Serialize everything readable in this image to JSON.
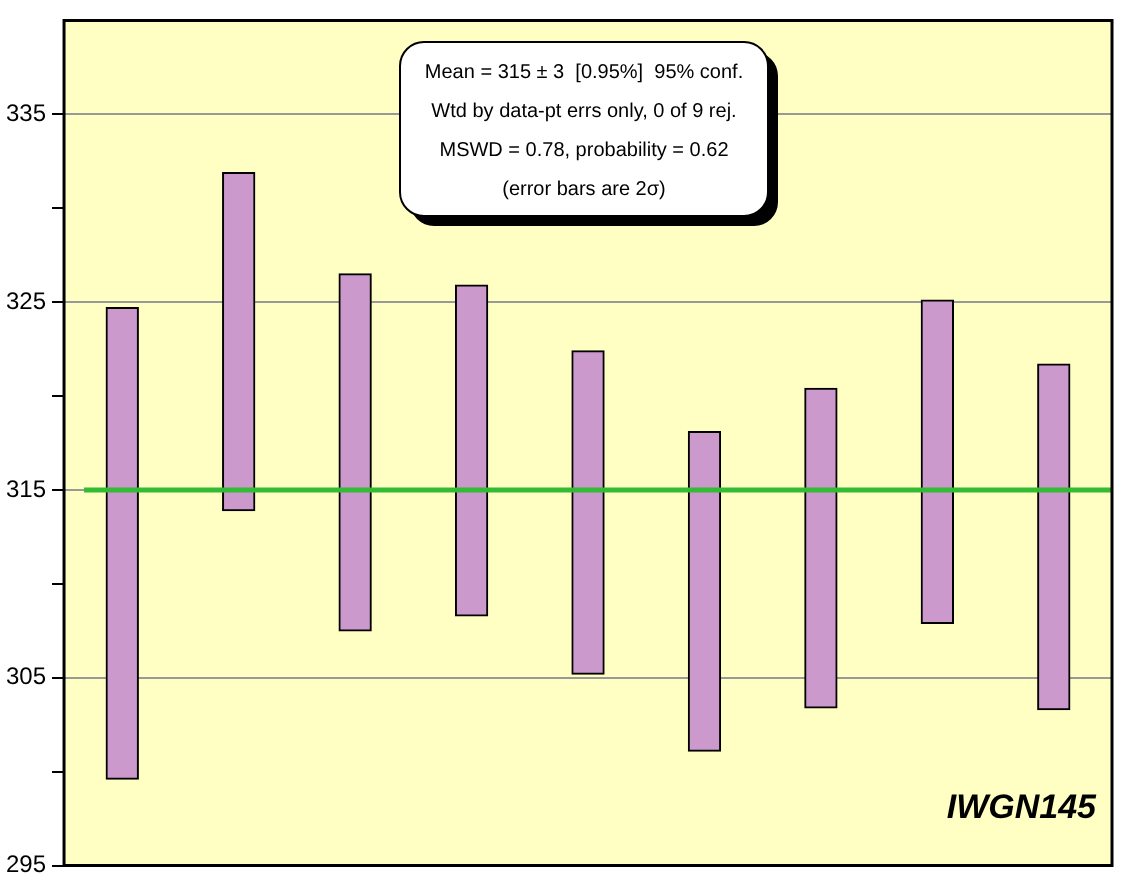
{
  "chart_data": {
    "type": "bar",
    "categories": [
      null,
      null,
      null,
      null,
      null,
      null,
      null,
      null,
      null
    ],
    "base": [
      299.6,
      313.9,
      307.5,
      308.3,
      305.2,
      301.1,
      303.4,
      307.9,
      303.3
    ],
    "values": [
      25.1,
      18.0,
      19.0,
      17.6,
      17.2,
      17.0,
      17.0,
      17.2,
      18.4
    ],
    "color": "#cc99cc",
    "ylim": [
      295,
      340
    ],
    "yticks": [
      295,
      {
        "value": 300,
        "label": null
      },
      305,
      {
        "value": 310,
        "label": null
      },
      315,
      {
        "value": 320,
        "label": null
      },
      325,
      {
        "value": 330,
        "label": null
      },
      335
    ],
    "grid": "y",
    "tick_labels": "y",
    "ref_lines": [
      {
        "axis": "y",
        "value": 315,
        "color": "#33bb33"
      }
    ],
    "annotations": [
      "Mean = 315 ± 3  [0.95%]  95% conf.",
      "Wtd by data-pt errs only, 0 of 9 rej.",
      "MSWD = 0.78, probability = 0.62",
      "(error bars are 2σ)",
      "IWGN145"
    ]
  }
}
